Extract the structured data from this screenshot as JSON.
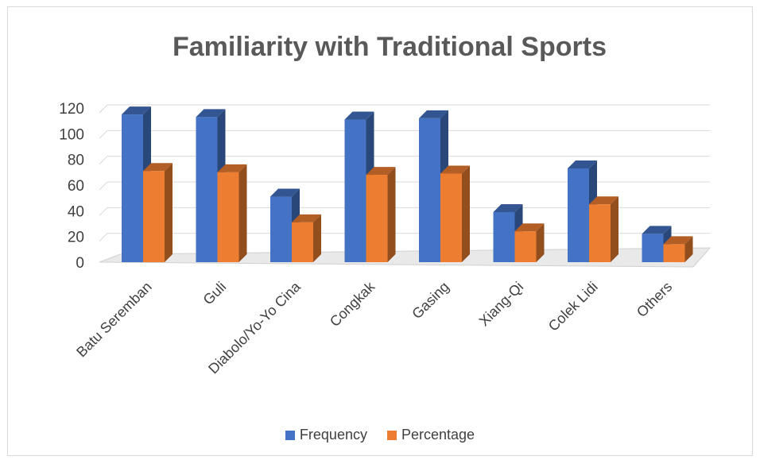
{
  "chart_data": {
    "type": "bar",
    "title": "Familiarity with Traditional Sports",
    "categories": [
      "Batu Seremban",
      "Guli",
      "Diabolo/Yo-Yo Cina",
      "Congkak",
      "Gasing",
      "Xiang-Qi",
      "Colek Lidi",
      "Others"
    ],
    "series": [
      {
        "name": "Frequency",
        "color": "#4472C4",
        "values": [
          115,
          113,
          51,
          111,
          112,
          39,
          73,
          22
        ]
      },
      {
        "name": "Percentage",
        "color": "#ED7D31",
        "values": [
          71,
          70,
          31,
          68,
          69,
          24,
          45,
          14
        ]
      }
    ],
    "ylim": [
      0,
      120
    ],
    "yticks": [
      0,
      20,
      40,
      60,
      80,
      100,
      120
    ],
    "grid": true,
    "legend_position": "bottom",
    "style": "3d-clustered-column"
  }
}
